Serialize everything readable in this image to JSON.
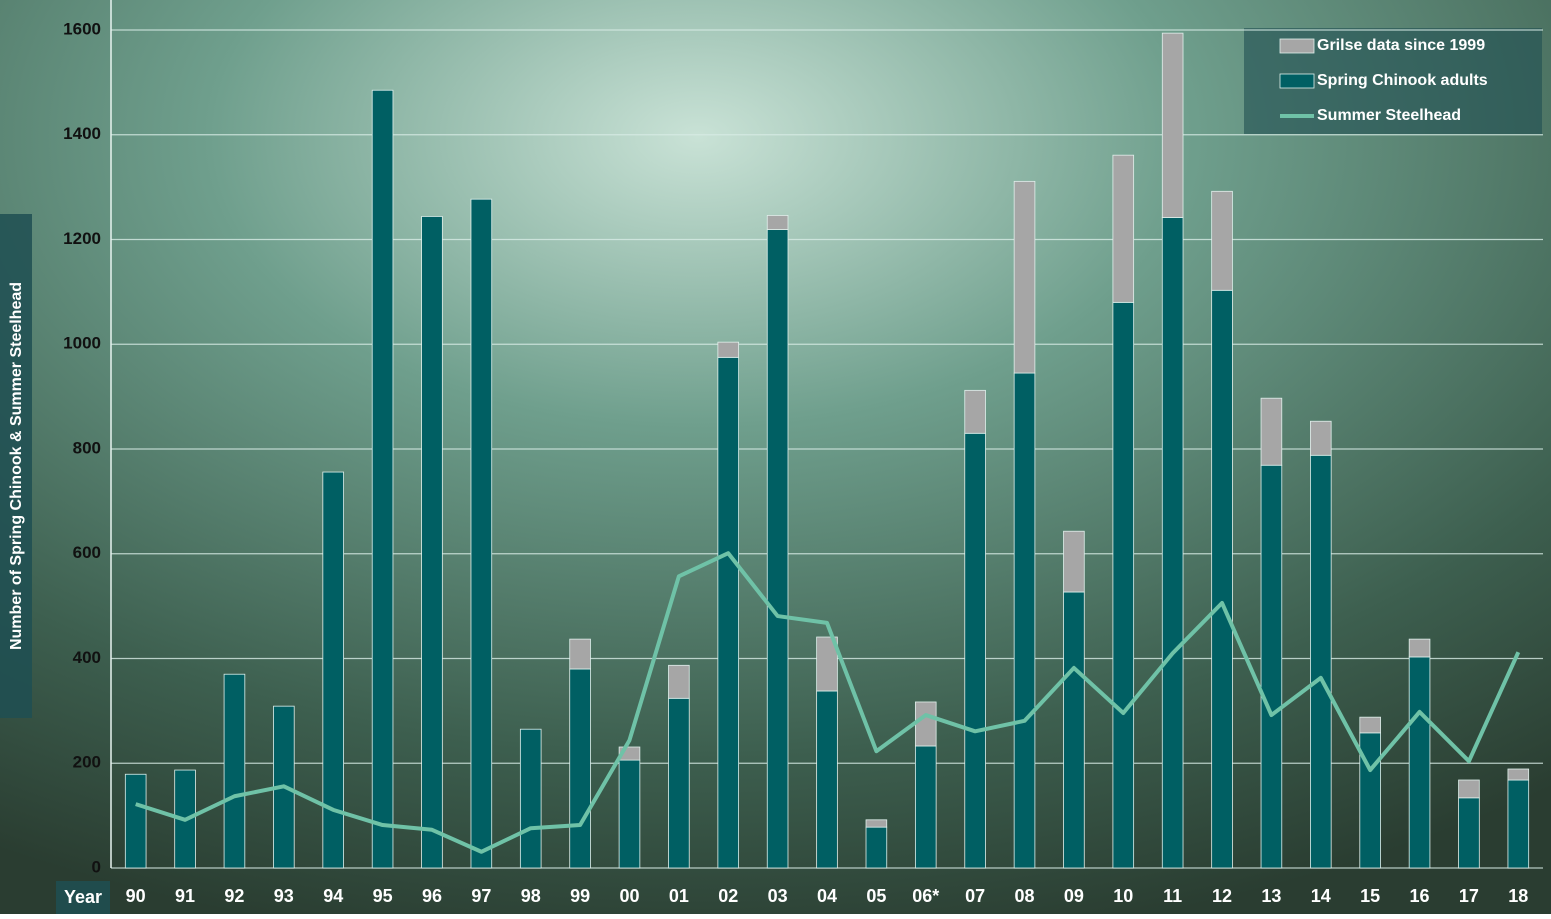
{
  "chart_data": {
    "type": "bar",
    "ylabel": "Number of Spring Chinook & Summer Steelhead",
    "xlabel": "Year",
    "categories": [
      "90",
      "91",
      "92",
      "93",
      "94",
      "95",
      "96",
      "97",
      "98",
      "99",
      "00",
      "01",
      "02",
      "03",
      "04",
      "05",
      "06*",
      "07",
      "08",
      "09",
      "10",
      "11",
      "12",
      "13",
      "14",
      "15",
      "16",
      "17",
      "18"
    ],
    "series": [
      {
        "name": "Grilse data since 1999",
        "color": "#a6a6a6",
        "kind": "stacked-bar",
        "values": [
          null,
          null,
          null,
          null,
          null,
          null,
          null,
          null,
          null,
          57,
          25,
          63,
          29,
          27,
          103,
          14,
          84,
          82,
          366,
          116,
          281,
          352,
          189,
          128,
          65,
          30,
          34,
          34,
          21
        ]
      },
      {
        "name": "Spring Chinook adults",
        "color": "#005f63",
        "kind": "bar",
        "values": [
          179,
          187,
          370,
          309,
          756,
          1485,
          1244,
          1277,
          265,
          380,
          206,
          324,
          975,
          1219,
          338,
          78,
          233,
          830,
          945,
          527,
          1080,
          1242,
          1103,
          769,
          788,
          258,
          403,
          134,
          168
        ]
      },
      {
        "name": "Summer Steelhead",
        "color": "#6fc2a7",
        "kind": "line",
        "values": [
          122,
          92,
          137,
          156,
          111,
          82,
          73,
          31,
          76,
          82,
          244,
          557,
          601,
          481,
          468,
          223,
          292,
          261,
          281,
          382,
          296,
          410,
          506,
          292,
          363,
          187,
          298,
          204,
          412
        ]
      }
    ],
    "ylim": [
      0,
      1600
    ],
    "yticks": [
      0,
      200,
      400,
      600,
      800,
      1000,
      1200,
      1400,
      1600
    ],
    "grid": true,
    "legend": "upper right"
  }
}
